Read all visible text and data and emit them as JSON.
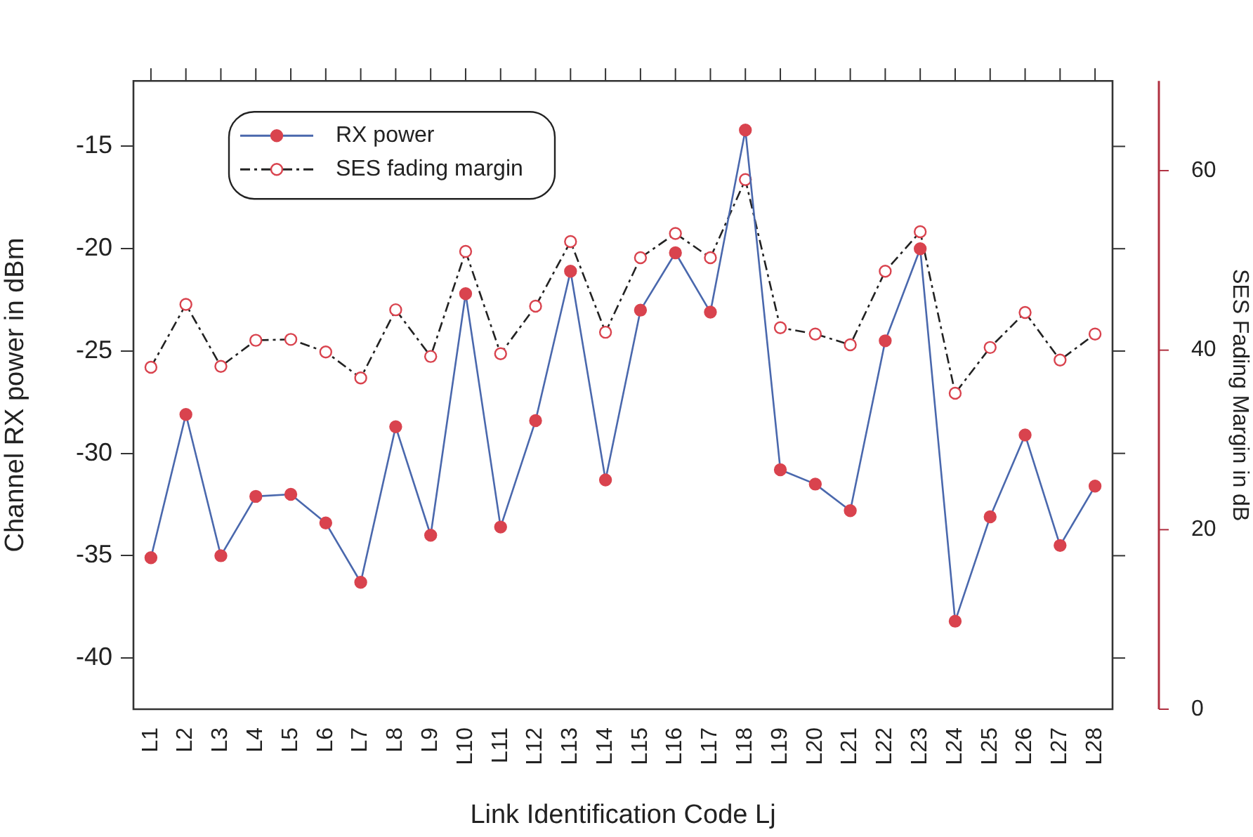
{
  "chart_data": {
    "type": "line",
    "xlabel": "Link Identification Code Lj",
    "ylabel": "Channel RX power in dBm",
    "y2label": "SES Fading Margin in dB",
    "categories": [
      "L1",
      "L2",
      "L3",
      "L4",
      "L5",
      "L6",
      "L7",
      "L8",
      "L9",
      "L10",
      "L11",
      "L12",
      "L13",
      "L14",
      "L15",
      "L16",
      "L17",
      "L18",
      "L19",
      "L20",
      "L21",
      "L22",
      "L23",
      "L24",
      "L25",
      "L26",
      "L27",
      "L28"
    ],
    "series": [
      {
        "name": "RX power",
        "color": "#4a68ad",
        "colors": [
          "#d9434e",
          "#d9434e",
          "#d9434e",
          "#d9434e",
          "#d9434e",
          "#d9434e",
          "#d9434e",
          "#d9434e",
          "#d9434e",
          "#d9434e",
          "#d9434e",
          "#d9434e",
          "#d9434e",
          "#d9434e",
          "#d9434e",
          "#d9434e",
          "#d9434e",
          "#d9434e",
          "#d9434e",
          "#d9434e",
          "#d9434e",
          "#d9434e",
          "#d9434e",
          "#d9434e",
          "#d9434e",
          "#d9434e",
          "#d9434e",
          "#d9434e"
        ],
        "line_style": "solid",
        "values": [
          -35.1,
          -28.1,
          -35.0,
          -32.1,
          -32.0,
          -33.4,
          -36.3,
          -28.7,
          -34.0,
          -22.2,
          -33.6,
          -28.4,
          -21.1,
          -31.3,
          -23.0,
          -20.2,
          -23.1,
          -14.2,
          -30.8,
          -31.5,
          -32.8,
          -24.5,
          -20.0,
          -38.2,
          -33.1,
          -29.1,
          -34.5,
          -31.6
        ]
      },
      {
        "name": "SES fading margin",
        "color": "#222222",
        "colors": [
          "#d9434e",
          "#d9434e",
          "#d9434e",
          "#d9434e",
          "#d9434e",
          "#d9434e",
          "#d9434e",
          "#d9434e",
          "#d9434e",
          "#d9434e",
          "#d9434e",
          "#d9434e",
          "#d9434e",
          "#d9434e",
          "#d9434e",
          "#d9434e",
          "#d9434e",
          "#d9434e",
          "#d9434e",
          "#d9434e",
          "#d9434e",
          "#d9434e",
          "#d9434e",
          "#d9434e",
          "#d9434e",
          "#d9434e",
          "#d9434e",
          "#d9434e"
        ],
        "axis": "y2",
        "line_style": "dashed",
        "values": [
          38.1,
          45.1,
          38.2,
          41.1,
          41.2,
          39.8,
          36.9,
          44.5,
          39.3,
          51.0,
          39.6,
          44.9,
          52.1,
          42.0,
          50.3,
          53.0,
          50.3,
          59.0,
          42.5,
          41.8,
          40.6,
          48.8,
          53.2,
          35.2,
          40.3,
          44.2,
          38.9,
          41.8
        ]
      }
    ],
    "ylim": [
      -42.5,
      -11.8
    ],
    "yticks": [
      -15,
      -20,
      -25,
      -30,
      -35,
      -40
    ],
    "y2lim": [
      0,
      70
    ],
    "y2ticks": [
      0,
      20,
      40,
      60
    ],
    "marker": "circle",
    "grid": false,
    "legend": "top left"
  }
}
